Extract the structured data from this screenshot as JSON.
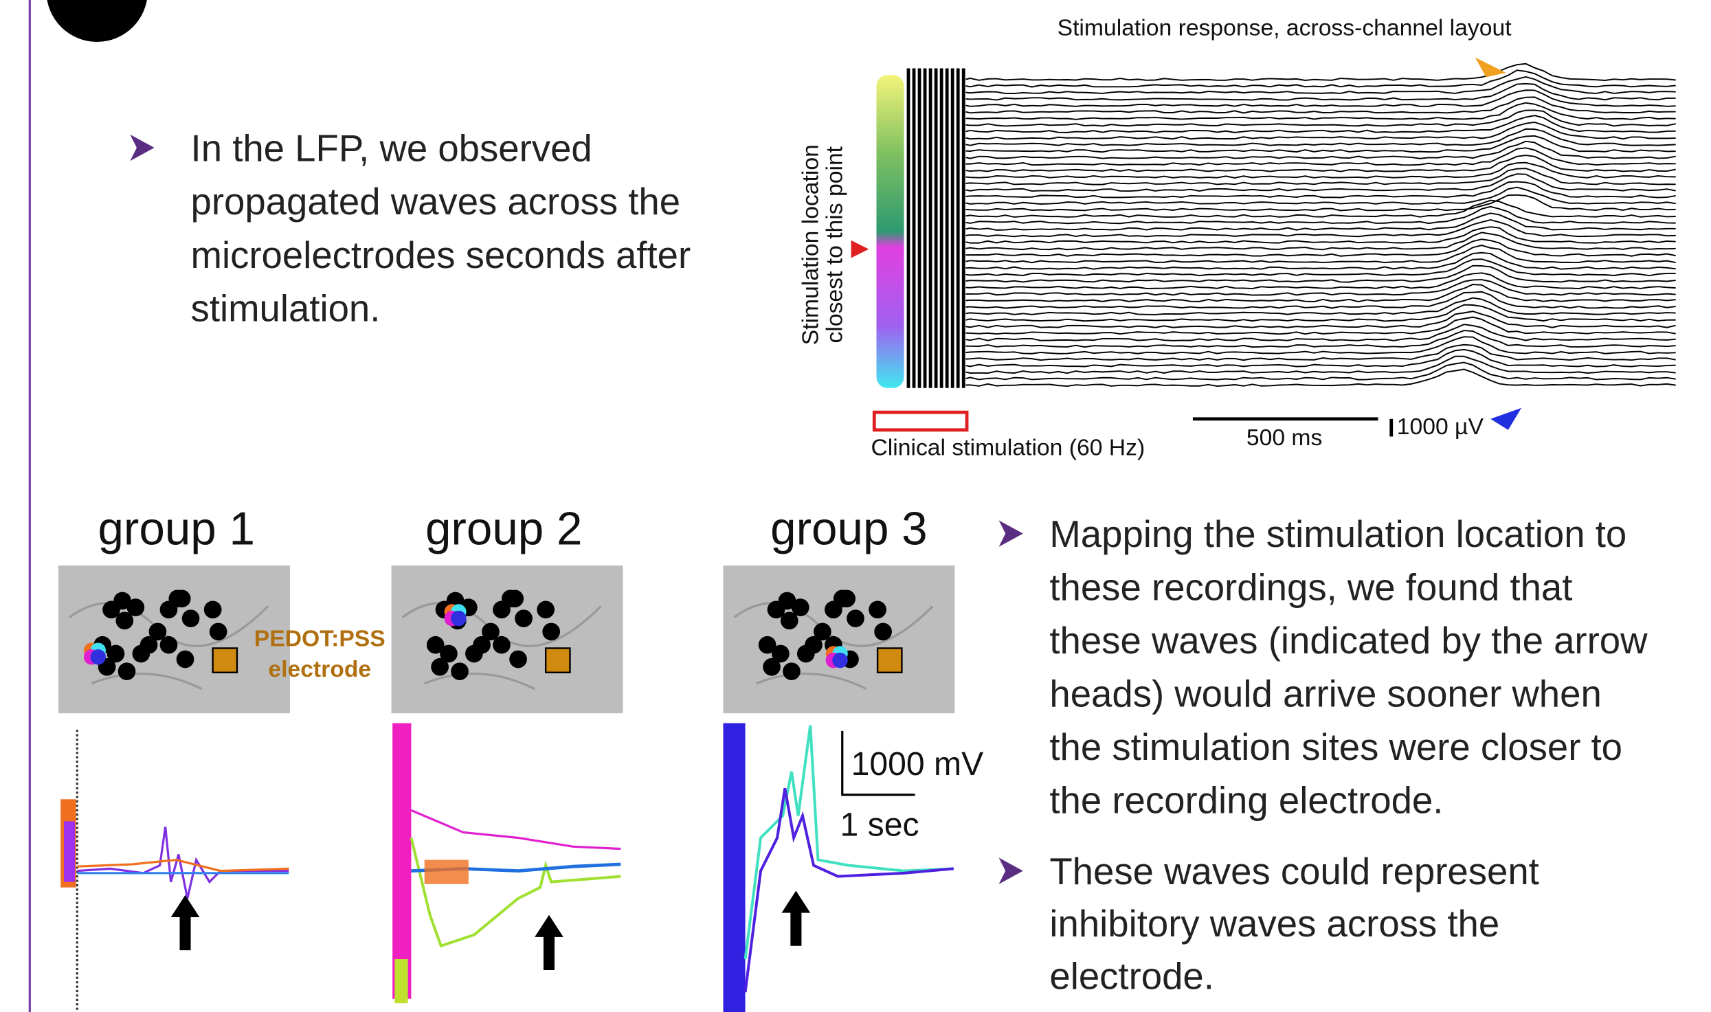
{
  "bullets": [
    {
      "lines": [
        "In the LFP, we observed",
        "propagated waves across the",
        "microelectrodes seconds after",
        "stimulation."
      ]
    },
    {
      "lines": [
        "Mapping the stimulation location to",
        "these recordings, we found that",
        "these waves (indicated by the arrow",
        "heads) would arrive sooner when",
        "the stimulation sites were closer to",
        "the recording electrode."
      ]
    },
    {
      "lines": [
        "These waves could represent",
        "inhibitory waves across the",
        "electrode."
      ]
    }
  ],
  "figure": {
    "title": "Stimulation response, across-channel layout",
    "y_label": [
      "Stimulation location",
      "closest to this point"
    ],
    "stim_label": "Clinical stimulation (60 Hz)",
    "time_scale": "500 ms",
    "voltage_scale": "1000 µV"
  },
  "groups": [
    {
      "title": "group 1"
    },
    {
      "title": "group 2"
    },
    {
      "title": "group 3"
    }
  ],
  "electrode_label": [
    "PEDOT:PSS",
    "electrode"
  ],
  "scale": {
    "voltage": "1000 mV",
    "time": "1 sec"
  }
}
